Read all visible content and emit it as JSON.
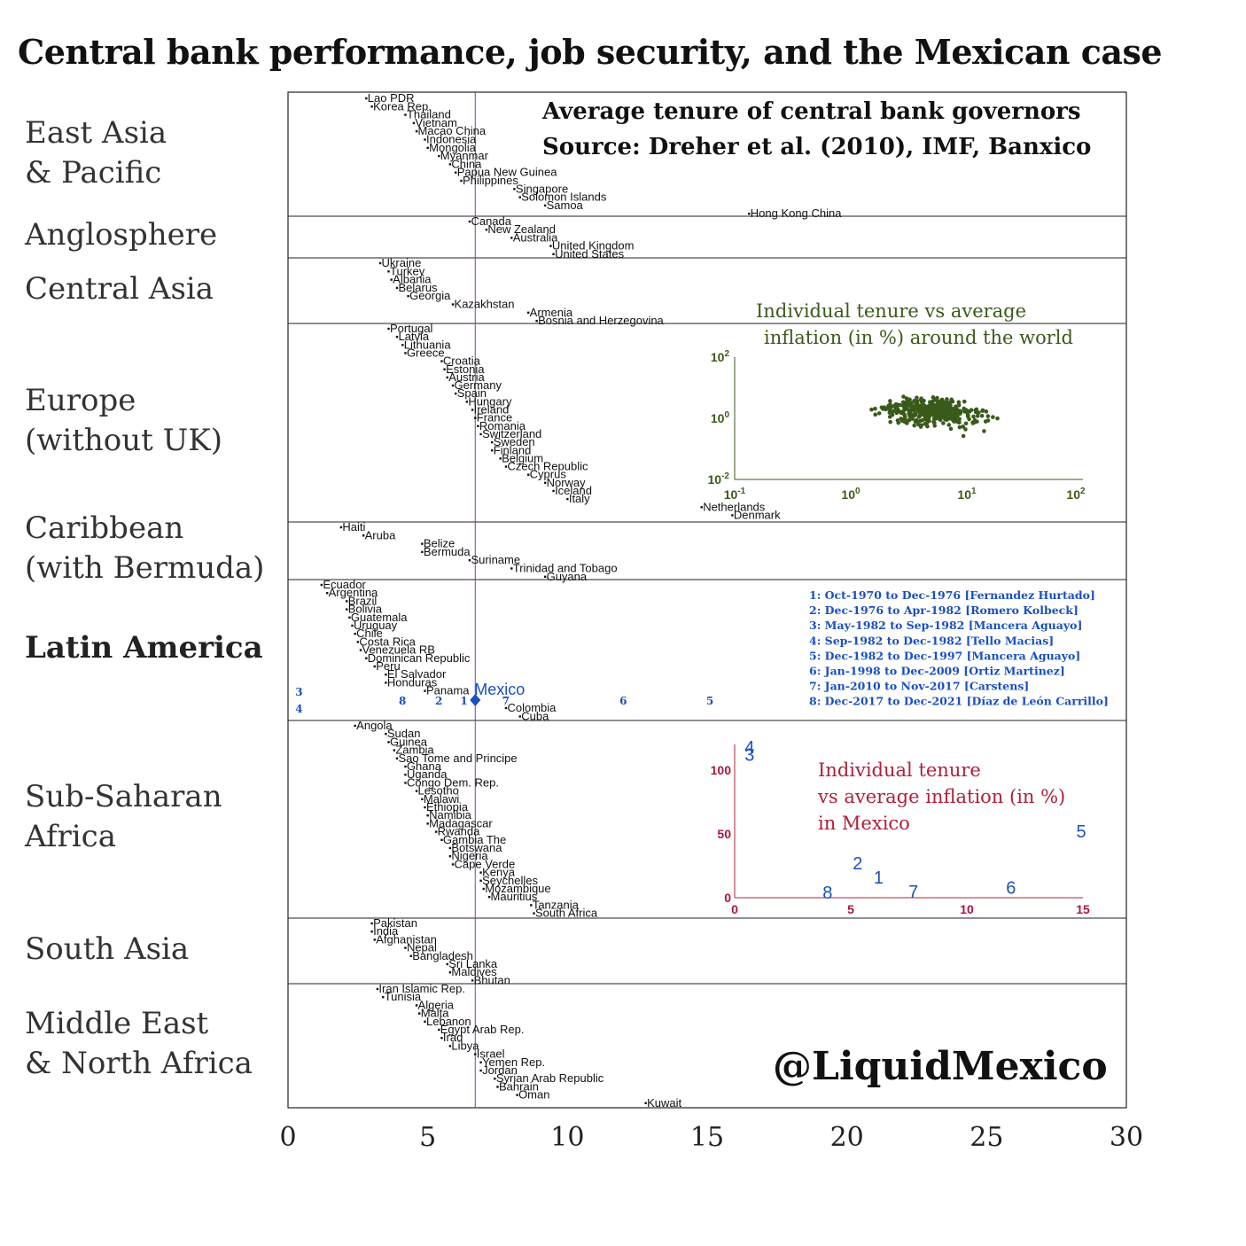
{
  "title": "Central bank performance, job security, and the Mexican case",
  "info_lines": [
    "Average tenure of central bank governors",
    "Source: Dreher et al. (2010), IMF, Banxico"
  ],
  "handle": "@LiquidMexico",
  "colors": {
    "reference_line": "#8a3aa8",
    "mexico_blue": "#1a4fbf",
    "world_green": "#3a5a1a",
    "mexico_red": "#b0203a"
  },
  "chart_data": [
    {
      "type": "scatter",
      "title": "",
      "xlim": [
        0,
        30
      ],
      "x_ticks": [
        0,
        5,
        10,
        15,
        20,
        25,
        30
      ],
      "reference_line_x": 6.7,
      "groups": [
        {
          "name": "East Asia\n& Pacific",
          "bold": false,
          "points": [
            {
              "label": "Lao PDR",
              "x": 2.8
            },
            {
              "label": "Korea Rep.",
              "x": 3.0
            },
            {
              "label": "Thailand",
              "x": 4.2
            },
            {
              "label": "Vietnam",
              "x": 4.5
            },
            {
              "label": "Macao China",
              "x": 4.6
            },
            {
              "label": "Indonesia",
              "x": 4.9
            },
            {
              "label": "Mongolia",
              "x": 5.0
            },
            {
              "label": "Myanmar",
              "x": 5.4
            },
            {
              "label": "China",
              "x": 5.8
            },
            {
              "label": "Papua New Guinea",
              "x": 6.0
            },
            {
              "label": "Philippines",
              "x": 6.2
            },
            {
              "label": "Singapore",
              "x": 8.1
            },
            {
              "label": "Solomon Islands",
              "x": 8.3
            },
            {
              "label": "Samoa",
              "x": 9.2
            },
            {
              "label": "Hong Kong China",
              "x": 16.5
            }
          ]
        },
        {
          "name": "Anglosphere",
          "bold": false,
          "points": [
            {
              "label": "Canada",
              "x": 6.5
            },
            {
              "label": "New Zealand",
              "x": 7.1
            },
            {
              "label": "Australia",
              "x": 8.0
            },
            {
              "label": "United Kingdom",
              "x": 9.4
            },
            {
              "label": "United States",
              "x": 9.5
            }
          ]
        },
        {
          "name": "Central Asia",
          "bold": false,
          "points": [
            {
              "label": "Ukraine",
              "x": 3.3
            },
            {
              "label": "Turkey",
              "x": 3.6
            },
            {
              "label": "Albania",
              "x": 3.7
            },
            {
              "label": "Belarus",
              "x": 3.9
            },
            {
              "label": "Georgia",
              "x": 4.3
            },
            {
              "label": "Kazakhstan",
              "x": 5.9
            },
            {
              "label": "Armenia",
              "x": 8.6
            },
            {
              "label": "Bosnia and Herzegovina",
              "x": 8.9
            }
          ]
        },
        {
          "name": "Europe\n(without UK)",
          "bold": false,
          "points": [
            {
              "label": "Portugal",
              "x": 3.6
            },
            {
              "label": "Latvia",
              "x": 3.9
            },
            {
              "label": "Lithuania",
              "x": 4.1
            },
            {
              "label": "Greece",
              "x": 4.2
            },
            {
              "label": "Croatia",
              "x": 5.5
            },
            {
              "label": "Estonia",
              "x": 5.6
            },
            {
              "label": "Austria",
              "x": 5.7
            },
            {
              "label": "Germany",
              "x": 5.9
            },
            {
              "label": "Spain",
              "x": 6.0
            },
            {
              "label": "Hungary",
              "x": 6.4
            },
            {
              "label": "Ireland",
              "x": 6.6
            },
            {
              "label": "France",
              "x": 6.7
            },
            {
              "label": "Romania",
              "x": 6.8
            },
            {
              "label": "Switzerland",
              "x": 6.9
            },
            {
              "label": "Sweden",
              "x": 7.3
            },
            {
              "label": "Finland",
              "x": 7.3
            },
            {
              "label": "Belgium",
              "x": 7.6
            },
            {
              "label": "Czech Republic",
              "x": 7.8
            },
            {
              "label": "Cyprus",
              "x": 8.6
            },
            {
              "label": "Norway",
              "x": 9.2
            },
            {
              "label": "Iceland",
              "x": 9.5
            },
            {
              "label": "Italy",
              "x": 10.0
            },
            {
              "label": "Netherlands",
              "x": 14.8
            },
            {
              "label": "Denmark",
              "x": 15.9
            }
          ]
        },
        {
          "name": "Caribbean\n(with Bermuda)",
          "bold": false,
          "points": [
            {
              "label": "Haiti",
              "x": 1.9
            },
            {
              "label": "Aruba",
              "x": 2.7
            },
            {
              "label": "Belize",
              "x": 4.8
            },
            {
              "label": "Bermuda",
              "x": 4.8
            },
            {
              "label": "Suriname",
              "x": 6.5
            },
            {
              "label": "Trinidad and Tobago",
              "x": 8.0
            },
            {
              "label": "Guyana",
              "x": 9.2
            }
          ]
        },
        {
          "name": "Latin America",
          "bold": true,
          "points": [
            {
              "label": "Ecuador",
              "x": 1.2
            },
            {
              "label": "Argentina",
              "x": 1.4
            },
            {
              "label": "Brazil",
              "x": 2.1
            },
            {
              "label": "Bolivia",
              "x": 2.1
            },
            {
              "label": "Guatemala",
              "x": 2.2
            },
            {
              "label": "Uruguay",
              "x": 2.3
            },
            {
              "label": "Chile",
              "x": 2.4
            },
            {
              "label": "Costa Rica",
              "x": 2.5
            },
            {
              "label": "Venezuela RB",
              "x": 2.6
            },
            {
              "label": "Dominican Republic",
              "x": 2.8
            },
            {
              "label": "Peru",
              "x": 3.1
            },
            {
              "label": "El Salvador",
              "x": 3.5
            },
            {
              "label": "Honduras",
              "x": 3.5
            },
            {
              "label": "Panama",
              "x": 4.9
            },
            {
              "label": "Colombia",
              "x": 7.8
            },
            {
              "label": "Cuba",
              "x": 8.3
            }
          ]
        },
        {
          "name": "Sub-Saharan\nAfrica",
          "bold": false,
          "points": [
            {
              "label": "Angola",
              "x": 2.4
            },
            {
              "label": "Sudan",
              "x": 3.5
            },
            {
              "label": "Guinea",
              "x": 3.6
            },
            {
              "label": "Zambia",
              "x": 3.8
            },
            {
              "label": "Sao Tome and Principe",
              "x": 3.9
            },
            {
              "label": "Ghana",
              "x": 4.2
            },
            {
              "label": "Uganda",
              "x": 4.2
            },
            {
              "label": "Congo Dem. Rep.",
              "x": 4.2
            },
            {
              "label": "Lesotho",
              "x": 4.6
            },
            {
              "label": "Malawi",
              "x": 4.8
            },
            {
              "label": "Ethiopia",
              "x": 4.9
            },
            {
              "label": "Namibia",
              "x": 5.0
            },
            {
              "label": "Madagascar",
              "x": 5.0
            },
            {
              "label": "Rwanda",
              "x": 5.3
            },
            {
              "label": "Gambia The",
              "x": 5.5
            },
            {
              "label": "Botswana",
              "x": 5.8
            },
            {
              "label": "Nigeria",
              "x": 5.8
            },
            {
              "label": "Cape Verde",
              "x": 5.9
            },
            {
              "label": "Kenya",
              "x": 6.9
            },
            {
              "label": "Seychelles",
              "x": 6.9
            },
            {
              "label": "Mozambique",
              "x": 7.0
            },
            {
              "label": "Mauritius",
              "x": 7.2
            },
            {
              "label": "Tanzania",
              "x": 8.7
            },
            {
              "label": "South Africa",
              "x": 8.8
            }
          ]
        },
        {
          "name": "South Asia",
          "bold": false,
          "points": [
            {
              "label": "Pakistan",
              "x": 3.0
            },
            {
              "label": "India",
              "x": 3.0
            },
            {
              "label": "Afghanistan",
              "x": 3.1
            },
            {
              "label": "Nepal",
              "x": 4.2
            },
            {
              "label": "Bangladesh",
              "x": 4.4
            },
            {
              "label": "Sri Lanka",
              "x": 5.7
            },
            {
              "label": "Maldives",
              "x": 5.8
            },
            {
              "label": "Bhutan",
              "x": 6.6
            }
          ]
        },
        {
          "name": "Middle East\n& North Africa",
          "bold": false,
          "points": [
            {
              "label": "Iran Islamic Rep.",
              "x": 3.2
            },
            {
              "label": "Tunisia",
              "x": 3.4
            },
            {
              "label": "Algeria",
              "x": 4.6
            },
            {
              "label": "Malta",
              "x": 4.7
            },
            {
              "label": "Lebanon",
              "x": 4.9
            },
            {
              "label": "Egypt Arab Rep.",
              "x": 5.4
            },
            {
              "label": "Iraq",
              "x": 5.5
            },
            {
              "label": "Libya",
              "x": 5.8
            },
            {
              "label": "Israel",
              "x": 6.7
            },
            {
              "label": "Yemen Rep.",
              "x": 6.9
            },
            {
              "label": "Jordan",
              "x": 6.9
            },
            {
              "label": "Syrian Arab Republic",
              "x": 7.4
            },
            {
              "label": "Bahrain",
              "x": 7.5
            },
            {
              "label": "Oman",
              "x": 8.2
            },
            {
              "label": "Kuwait",
              "x": 12.8
            }
          ]
        }
      ],
      "mexico": {
        "label": "Mexico",
        "x": 6.7
      },
      "governor_tenures": [
        {
          "id": "3",
          "x": 0.3
        },
        {
          "id": "4",
          "x": 0.3
        },
        {
          "id": "8",
          "x": 4.0
        },
        {
          "id": "2",
          "x": 5.3
        },
        {
          "id": "1",
          "x": 6.2
        },
        {
          "id": "7",
          "x": 7.7
        },
        {
          "id": "6",
          "x": 11.9
        },
        {
          "id": "5",
          "x": 15.0
        }
      ],
      "governor_legend": [
        "1: Oct-1970 to Dec-1976 [Fernandez Hurtado]",
        "2: Dec-1976 to Apr-1982 [Romero Kolbeck]",
        "3: May-1982 to Sep-1982 [Mancera Aguayo]",
        "4: Sep-1982 to Dec-1982 [Tello Macias]",
        "5: Dec-1982 to Dec-1997 [Mancera Aguayo]",
        "6: Jan-1998 to Dec-2009 [Ortiz Martinez]",
        "7: Jan-2010 to Nov-2017 [Carstens]",
        "8: Dec-2017 to Dec-2021 [Díaz de León Carrillo]"
      ]
    },
    {
      "type": "scatter",
      "title": "Individual tenure vs average\ninflation (in %) around the world",
      "x_scale": "log",
      "y_scale": "log",
      "xlim": [
        0.1,
        100
      ],
      "ylim": [
        0.01,
        100
      ],
      "x_ticks": [
        "10-1",
        "100",
        "101",
        "102"
      ],
      "y_ticks": [
        "10-2",
        "100",
        "102"
      ],
      "n_points": 420
    },
    {
      "type": "scatter",
      "title": "Individual tenure\nvs average inflation (in %)\nin Mexico",
      "xlim": [
        0,
        15
      ],
      "ylim": [
        0,
        120
      ],
      "x_ticks": [
        0,
        5,
        10,
        15
      ],
      "y_ticks": [
        0,
        50,
        100
      ],
      "points": [
        {
          "label": "1",
          "x": 6.2,
          "y": 16
        },
        {
          "label": "2",
          "x": 5.3,
          "y": 27
        },
        {
          "label": "3",
          "x": 0.3,
          "y": 112
        },
        {
          "label": "4",
          "x": 0.3,
          "y": 118
        },
        {
          "label": "5",
          "x": 15.0,
          "y": 52
        },
        {
          "label": "6",
          "x": 11.9,
          "y": 8
        },
        {
          "label": "7",
          "x": 7.7,
          "y": 5
        },
        {
          "label": "8",
          "x": 4.0,
          "y": 4
        }
      ]
    }
  ]
}
